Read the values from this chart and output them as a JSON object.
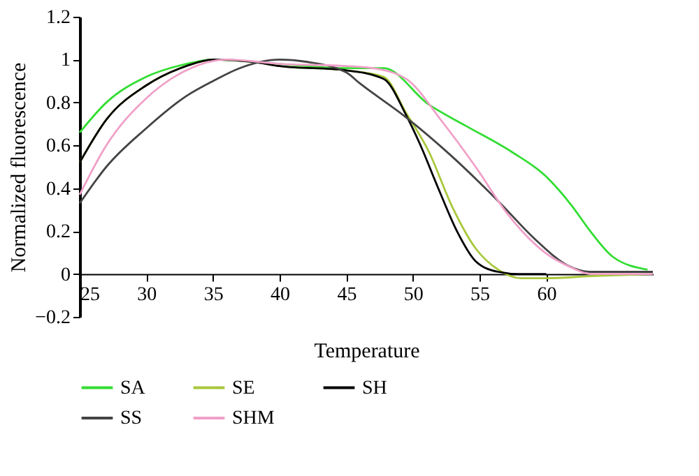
{
  "chart_data": {
    "type": "line",
    "xlabel": "Temperature",
    "ylabel": "Normalized fluorescence",
    "xlim": [
      25,
      68
    ],
    "xticks": [
      25,
      30,
      35,
      40,
      45,
      50,
      55,
      60
    ],
    "ylim": [
      -0.2,
      1.2
    ],
    "yticks": [
      -0.2,
      0,
      0.2,
      0.4,
      0.6,
      0.8,
      1,
      1.2
    ],
    "grid": false,
    "legend": "bottom",
    "marker": "none",
    "line_style": "solid",
    "series": [
      {
        "name": "SA",
        "color": "#33dd33",
        "x": [
          25,
          27,
          30,
          33,
          35,
          40,
          45,
          47.8,
          51.2,
          54,
          57.4,
          59.9,
          61.9,
          63.3,
          65,
          67.6
        ],
        "values": [
          0.66,
          0.8,
          0.92,
          0.98,
          1.0,
          0.98,
          0.96,
          0.96,
          0.79,
          0.69,
          0.57,
          0.46,
          0.32,
          0.2,
          0.08,
          0.02
        ]
      },
      {
        "name": "SE",
        "color": "#a8c83c",
        "x": [
          25,
          27,
          30,
          33,
          35,
          38,
          40,
          45,
          47.8,
          49.5,
          51.2,
          52.9,
          54.7,
          56.4,
          58.1,
          60,
          63.3,
          68
        ],
        "values": [
          0.52,
          0.72,
          0.88,
          0.97,
          1.0,
          0.99,
          0.97,
          0.95,
          0.92,
          0.75,
          0.57,
          0.32,
          0.12,
          0.02,
          -0.02,
          -0.02,
          -0.01,
          0.0
        ]
      },
      {
        "name": "SH",
        "color": "#000000",
        "x": [
          25,
          27,
          30,
          33,
          35,
          38,
          40,
          45,
          47.8,
          49.5,
          50.5,
          51.9,
          53.3,
          54.7,
          56.4,
          58,
          60
        ],
        "values": [
          0.52,
          0.72,
          0.88,
          0.97,
          1.0,
          0.99,
          0.97,
          0.95,
          0.91,
          0.74,
          0.61,
          0.4,
          0.2,
          0.06,
          0.01,
          0.0,
          0.0
        ]
      },
      {
        "name": "SS",
        "color": "#444444",
        "x": [
          25,
          27,
          30,
          33,
          35,
          37,
          40,
          42,
          45,
          46,
          49.5,
          52.9,
          56.4,
          59.2,
          61.6,
          63.3,
          68
        ],
        "values": [
          0.33,
          0.5,
          0.68,
          0.83,
          0.9,
          0.96,
          1.0,
          0.99,
          0.94,
          0.89,
          0.73,
          0.55,
          0.34,
          0.16,
          0.04,
          0.01,
          0.01
        ]
      },
      {
        "name": "SHM",
        "color": "#f0a0c8",
        "x": [
          25,
          27,
          30,
          33,
          36,
          40,
          45,
          47,
          49.5,
          52.2,
          54.7,
          57.1,
          59.9,
          61.9,
          63.3,
          68
        ],
        "values": [
          0.37,
          0.6,
          0.82,
          0.95,
          1.0,
          0.98,
          0.97,
          0.96,
          0.91,
          0.71,
          0.5,
          0.28,
          0.1,
          0.03,
          0.0,
          0.0
        ]
      }
    ]
  }
}
